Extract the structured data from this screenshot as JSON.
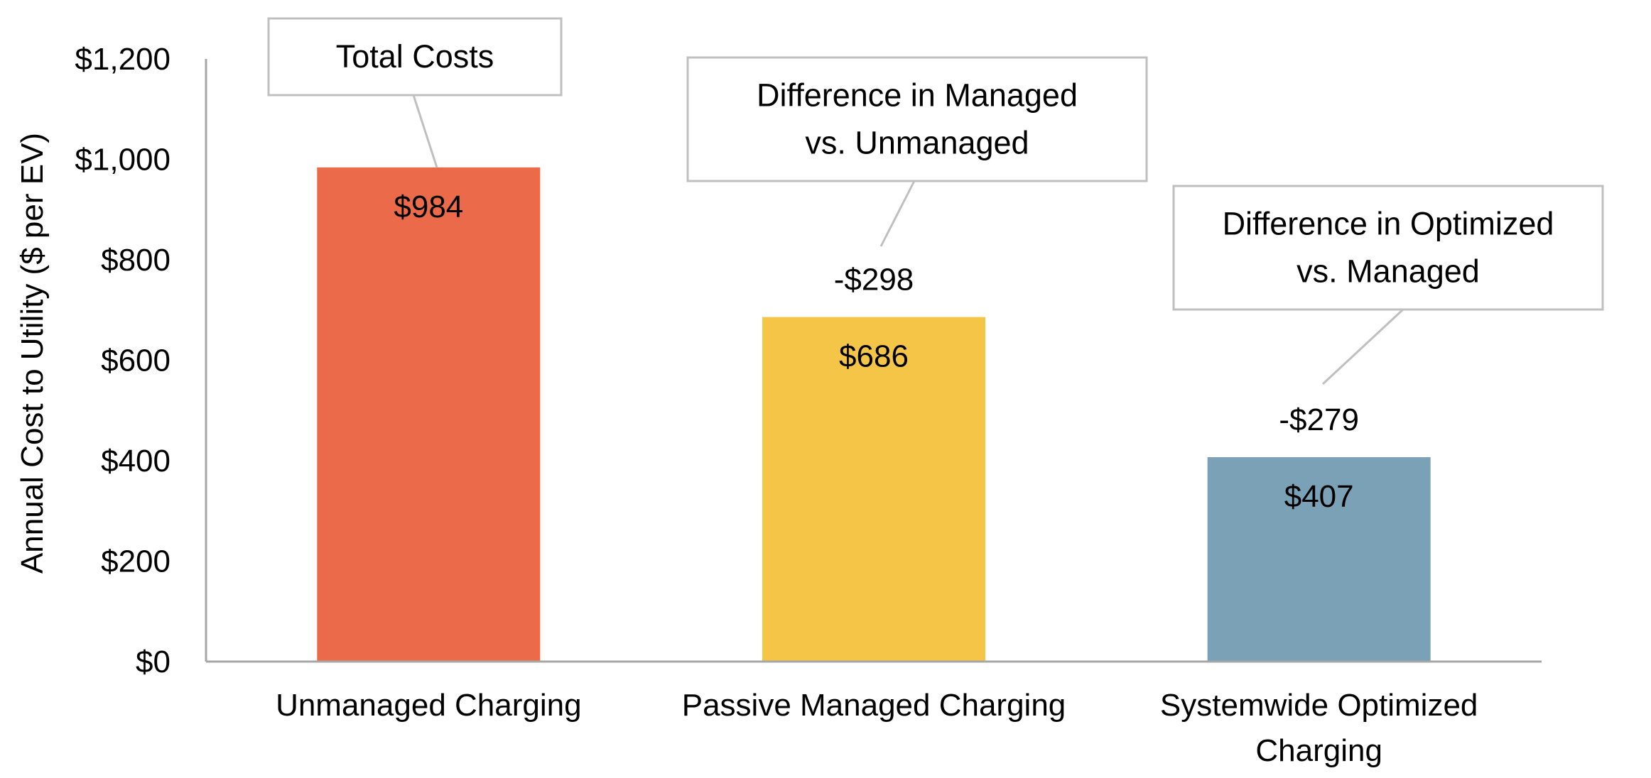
{
  "chart_data": {
    "type": "bar",
    "title": "",
    "xlabel": "",
    "ylabel": "Annual Cost to Utility ($ per EV)",
    "ylim": [
      0,
      1200
    ],
    "yticks": [
      0,
      200,
      400,
      600,
      800,
      1000,
      1200
    ],
    "ytick_labels": [
      "$0",
      "$200",
      "$400",
      "$600",
      "$800",
      "$1,000",
      "$1,200"
    ],
    "grid": false,
    "legend": "none",
    "categories": [
      [
        "Unmanaged Charging"
      ],
      [
        "Passive Managed Charging"
      ],
      [
        "Systemwide Optimized",
        "Charging"
      ]
    ],
    "values": [
      984,
      686,
      407
    ],
    "value_labels": [
      "$984",
      "$686",
      "$407"
    ],
    "colors": [
      "#ea6a4a",
      "#f5c547",
      "#7aa1b6"
    ],
    "difference_labels": [
      "",
      "-$298",
      "-$279"
    ],
    "annotations": [
      {
        "target": 0,
        "lines": [
          "Total Costs"
        ]
      },
      {
        "target": 1,
        "lines": [
          "Difference in Managed",
          "vs. Unmanaged"
        ]
      },
      {
        "target": 2,
        "lines": [
          "Difference in Optimized",
          "vs. Managed"
        ]
      }
    ]
  }
}
